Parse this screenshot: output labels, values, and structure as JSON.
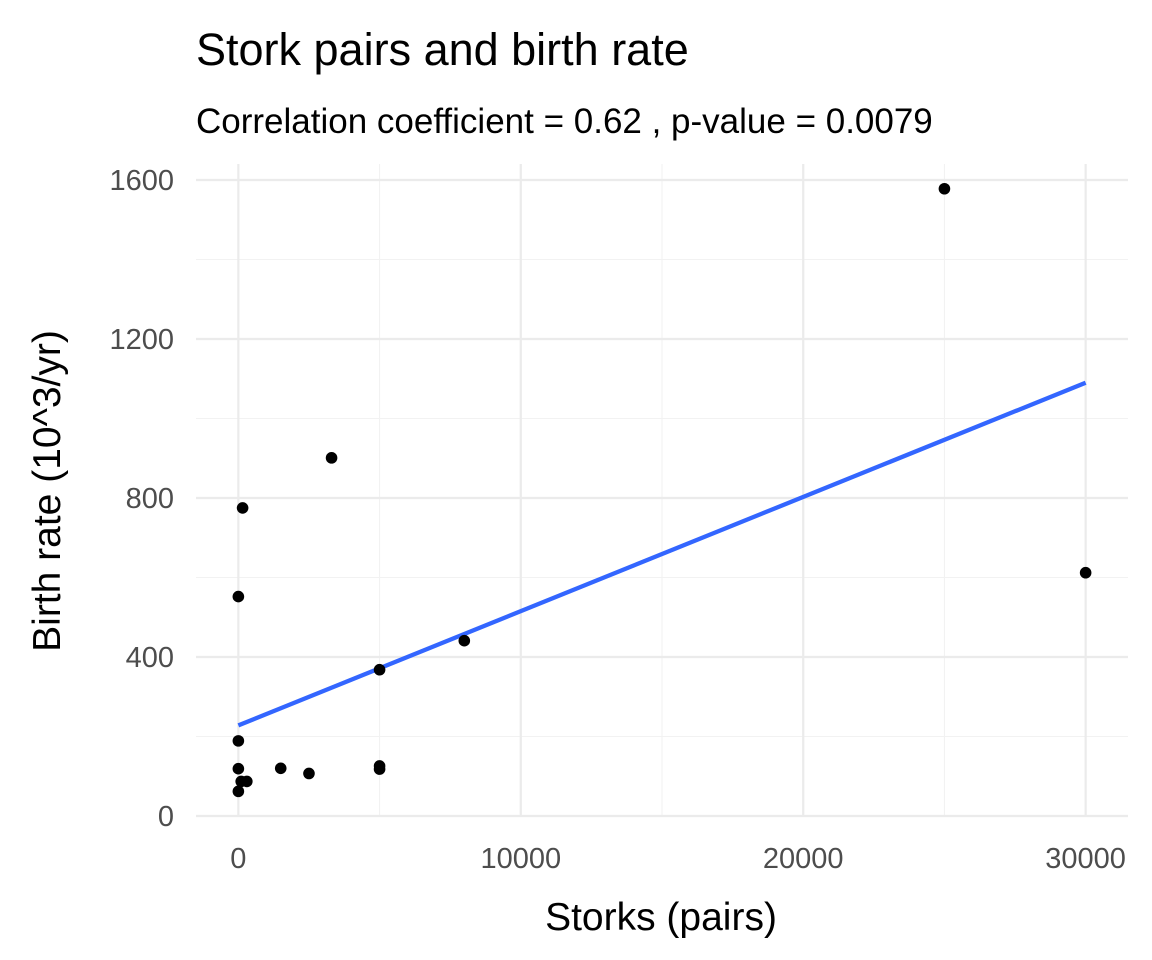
{
  "chart_data": {
    "type": "scatter",
    "title": "Stork pairs and birth rate",
    "subtitle": "Correlation coefficient = 0.62 , p-value = 0.0079",
    "xlabel": "Storks (pairs)",
    "ylabel": "Birth rate (10^3/yr)",
    "xlim": [
      -1500,
      31500
    ],
    "ylim": [
      0,
      1600
    ],
    "x_ticks": [
      0,
      10000,
      20000,
      30000
    ],
    "x_tick_labels": [
      "0",
      "10000",
      "20000",
      "30000"
    ],
    "x_minor_ticks": [
      5000,
      15000,
      25000
    ],
    "y_ticks": [
      0,
      400,
      800,
      1200,
      1600
    ],
    "y_tick_labels": [
      "0",
      "400",
      "800",
      "1200",
      "1600"
    ],
    "y_minor_ticks": [
      200,
      600,
      1000,
      1400
    ],
    "grid": true,
    "series": [
      {
        "type": "scatter",
        "color": "#000000",
        "points": [
          {
            "x": 25000,
            "y": 1578
          },
          {
            "x": 3300,
            "y": 901
          },
          {
            "x": 150,
            "y": 775
          },
          {
            "x": 0,
            "y": 552
          },
          {
            "x": 30000,
            "y": 612
          },
          {
            "x": 8000,
            "y": 441
          },
          {
            "x": 5000,
            "y": 368
          },
          {
            "x": 0,
            "y": 189
          },
          {
            "x": 0,
            "y": 119
          },
          {
            "x": 1500,
            "y": 120
          },
          {
            "x": 2500,
            "y": 107
          },
          {
            "x": 5000,
            "y": 126
          },
          {
            "x": 5000,
            "y": 118
          },
          {
            "x": 100,
            "y": 87
          },
          {
            "x": 300,
            "y": 87
          },
          {
            "x": 0,
            "y": 62
          }
        ]
      },
      {
        "type": "line",
        "color": "#3366ff",
        "x": [
          0,
          30000
        ],
        "y": [
          228,
          1090
        ]
      }
    ]
  }
}
